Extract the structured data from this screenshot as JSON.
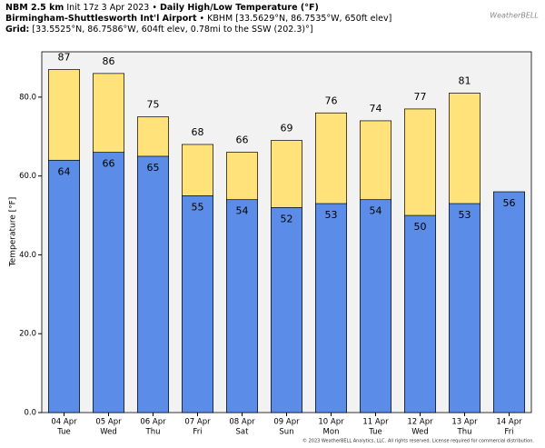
{
  "header": {
    "model": "NBM 2.5 km",
    "init": "Init 17z 3 Apr 2023",
    "sep1": "•",
    "product": "Daily High/Low Temperature (°F)",
    "station": "Birmingham-Shuttlesworth Int'l Airport",
    "station_info": "• KBHM [33.5629°N, 86.7535°W, 650ft elev]",
    "grid_label": "Grid:",
    "grid_info": "[33.5525°N, 86.7586°W, 604ft elev, 0.78mi to the SSW (202.3)°]"
  },
  "logo": "WeatherBELL",
  "chart_data": {
    "type": "bar",
    "y_label": "Temperature [°F]",
    "categories": [
      "04 Apr",
      "05 Apr",
      "06 Apr",
      "07 Apr",
      "08 Apr",
      "09 Apr",
      "10 Apr",
      "11 Apr",
      "12 Apr",
      "13 Apr",
      "14 Apr"
    ],
    "category_days": [
      "Tue",
      "Wed",
      "Thu",
      "Fri",
      "Sat",
      "Sun",
      "Mon",
      "Tue",
      "Wed",
      "Thu",
      "Fri"
    ],
    "series": [
      {
        "color": "#ffe37a",
        "values": [
          87,
          86,
          75,
          68,
          66,
          69,
          76,
          74,
          77,
          81,
          null
        ]
      },
      {
        "color": "#5b8de8",
        "values": [
          64,
          66,
          65,
          55,
          54,
          52,
          53,
          54,
          50,
          53,
          56
        ]
      }
    ],
    "ylim": [
      0,
      91.5
    ],
    "yticks": [
      {
        "value": 0,
        "label": "0.0"
      },
      {
        "value": 20,
        "label": "20.0"
      },
      {
        "value": 40,
        "label": "40.0"
      },
      {
        "value": 60,
        "label": "60.0"
      },
      {
        "value": 80,
        "label": "80.0"
      }
    ]
  },
  "footer": "© 2023 WeatherBELL Analytics, LLC. All rights reserved. License required for commercial distribution."
}
